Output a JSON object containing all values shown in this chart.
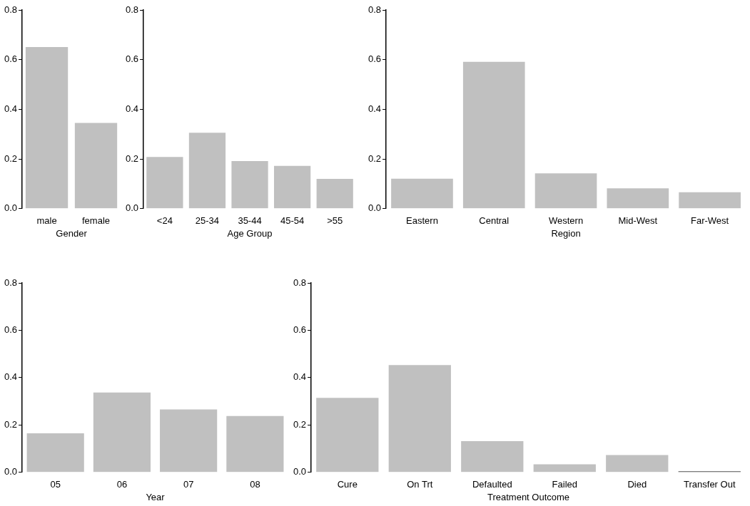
{
  "chart_data": [
    {
      "type": "bar",
      "xlabel": "Gender",
      "categories": [
        "male",
        "female"
      ],
      "values": [
        0.651,
        0.345
      ],
      "color": "#c0c0c0",
      "ylim": [
        0,
        0.8
      ],
      "yticks": [
        {
          "value": 0,
          "label": "0.0"
        },
        {
          "value": 0.2,
          "label": "0.2"
        },
        {
          "value": 0.4,
          "label": "0.4"
        },
        {
          "value": 0.6,
          "label": "0.6"
        },
        {
          "value": 0.8,
          "label": "0.8"
        }
      ]
    },
    {
      "type": "bar",
      "xlabel": "Age Group",
      "categories": [
        "<24",
        "25-34",
        "35-44",
        "45-54",
        ">55"
      ],
      "values": [
        0.208,
        0.306,
        0.192,
        0.172,
        0.12
      ],
      "color": "#c0c0c0",
      "ylim": [
        0,
        0.8
      ],
      "yticks": [
        {
          "value": 0,
          "label": "0.0"
        },
        {
          "value": 0.2,
          "label": "0.2"
        },
        {
          "value": 0.4,
          "label": "0.4"
        },
        {
          "value": 0.6,
          "label": "0.6"
        },
        {
          "value": 0.8,
          "label": "0.8"
        }
      ]
    },
    {
      "type": "bar",
      "xlabel": "Region",
      "categories": [
        "Eastern",
        "Central",
        "Western",
        "Mid-West",
        "Far-West"
      ],
      "values": [
        0.121,
        0.591,
        0.142,
        0.082,
        0.066
      ],
      "color": "#c0c0c0",
      "ylim": [
        0,
        0.8
      ],
      "yticks": [
        {
          "value": 0,
          "label": "0.0"
        },
        {
          "value": 0.2,
          "label": "0.2"
        },
        {
          "value": 0.4,
          "label": "0.4"
        },
        {
          "value": 0.6,
          "label": "0.6"
        },
        {
          "value": 0.8,
          "label": "0.8"
        }
      ]
    },
    {
      "type": "bar",
      "xlabel": "Year",
      "categories": [
        "05",
        "06",
        "07",
        "08"
      ],
      "values": [
        0.165,
        0.337,
        0.266,
        0.238
      ],
      "color": "#c0c0c0",
      "ylim": [
        0,
        0.8
      ],
      "yticks": [
        {
          "value": 0,
          "label": "0.0"
        },
        {
          "value": 0.2,
          "label": "0.2"
        },
        {
          "value": 0.4,
          "label": "0.4"
        },
        {
          "value": 0.6,
          "label": "0.6"
        },
        {
          "value": 0.8,
          "label": "0.8"
        }
      ]
    },
    {
      "type": "bar",
      "xlabel": "Treatment Outcome",
      "categories": [
        "Cure",
        "On Trt",
        "Defaulted",
        "Failed",
        "Died",
        "Transfer Out"
      ],
      "values": [
        0.315,
        0.453,
        0.132,
        0.034,
        0.073,
        0.004
      ],
      "colors": [
        "#c0c0c0",
        "#c0c0c0",
        "#c0c0c0",
        "#c0c0c0",
        "#c0c0c0",
        "#000000"
      ],
      "ylim": [
        0,
        0.8
      ],
      "yticks": [
        {
          "value": 0,
          "label": "0.0"
        },
        {
          "value": 0.2,
          "label": "0.2"
        },
        {
          "value": 0.4,
          "label": "0.4"
        },
        {
          "value": 0.6,
          "label": "0.6"
        },
        {
          "value": 0.8,
          "label": "0.8"
        }
      ]
    }
  ]
}
